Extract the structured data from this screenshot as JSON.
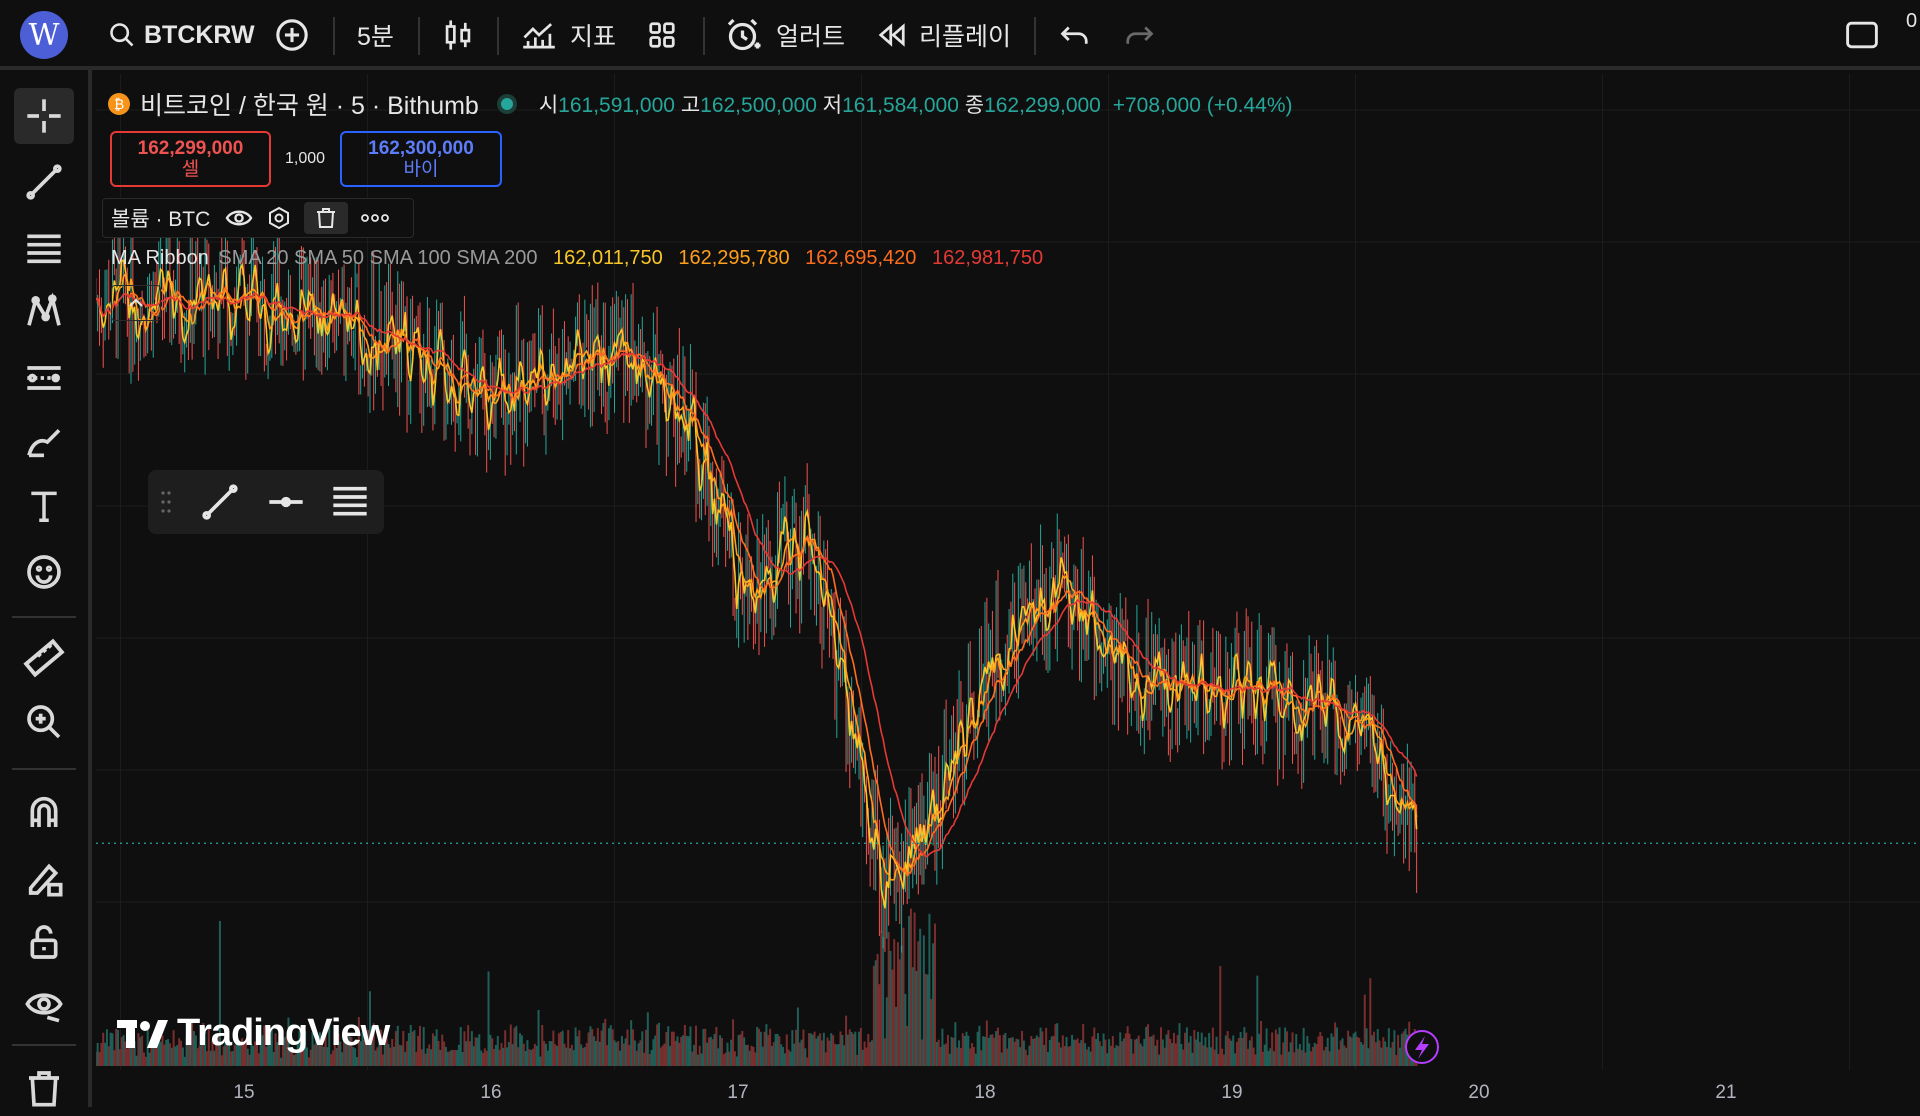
{
  "toolbar": {
    "avatar_letter": "W",
    "symbol": "BTCKRW",
    "interval": "5분",
    "indicators_label": "지표",
    "alerts_label": "얼러트",
    "replay_label": "리플레이",
    "right_cut_text": "0"
  },
  "legend": {
    "title": "비트코인 / 한국 원 · 5 · Bithumb",
    "open_k": "시",
    "open_v": "161,591,000",
    "high_k": "고",
    "high_v": "162,500,000",
    "low_k": "저",
    "low_v": "161,584,000",
    "close_k": "종",
    "close_v": "162,299,000",
    "change": "+708,000 (+0.44%)",
    "up_color": "#26a69a"
  },
  "trade": {
    "sell_price": "162,299,000",
    "sell_label": "셀",
    "spread": "1,000",
    "buy_price": "162,300,000",
    "buy_label": "바이"
  },
  "volume_panel": {
    "label": "볼륨 · BTC"
  },
  "ma_ribbon": {
    "label": "MA Ribbon",
    "params": "SMA 20 SMA 50 SMA 100 SMA 200",
    "v1": "162,011,750",
    "v2": "162,295,780",
    "v3": "162,695,420",
    "v4": "162,981,750",
    "c1": "#f9c727",
    "c2": "#ff9f1a",
    "c3": "#ff6d1f",
    "c4": "#e53935"
  },
  "x_axis": {
    "ticks": [
      "15",
      "16",
      "17",
      "18",
      "19",
      "20",
      "21"
    ]
  },
  "watermark": "TradingView",
  "chart_data": {
    "type": "line",
    "symbol": "BTCKRW",
    "interval": "5분",
    "x_ticks": [
      "15",
      "16",
      "17",
      "18",
      "19",
      "20",
      "21"
    ],
    "x": [
      15.0,
      15.5,
      16.0,
      16.5,
      16.8,
      17.0,
      17.3,
      17.6,
      17.8,
      18.0,
      18.3,
      18.6,
      19.0,
      19.3,
      19.5,
      19.75
    ],
    "series": [
      {
        "values": [
          166800000,
          166500000,
          166000000,
          166400000,
          165800000,
          164500000,
          164800000,
          161900000,
          162600000,
          163800000,
          164400000,
          163700000,
          163600000,
          163400000,
          163300000,
          162299000
        ]
      }
    ],
    "last_price": 162299000
  }
}
